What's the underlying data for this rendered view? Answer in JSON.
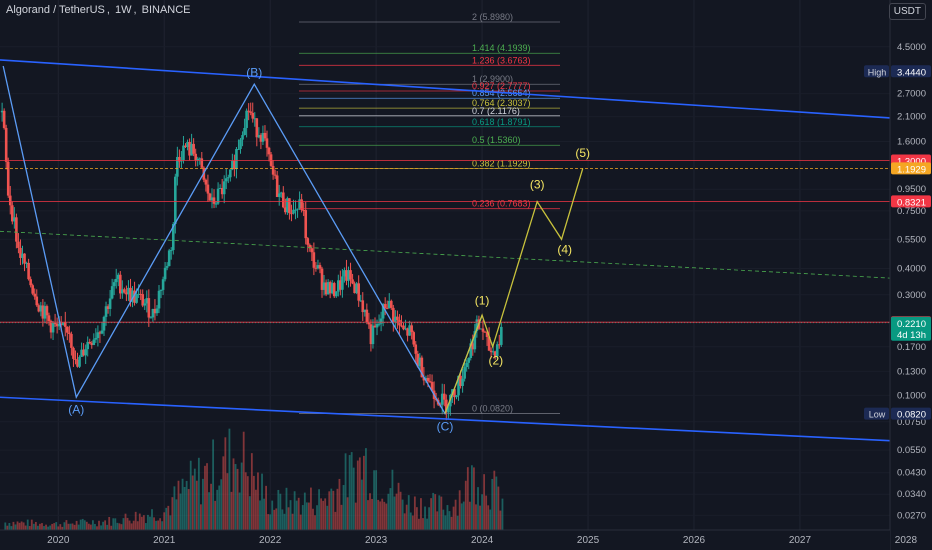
{
  "header": {
    "symbol": "Algorand / TetherUS",
    "interval": "1W",
    "exchange": "BINANCE",
    "currency": "USDT"
  },
  "colors": {
    "background": "#131722",
    "up": "#26a69a",
    "down": "#ef5350",
    "channel": "#2962ff",
    "zigzag": "#5b9cf6",
    "elliott": "#c8c23c",
    "wave_label": "#f5e663",
    "abc_label": "#5b9cf6",
    "midline": "#4caf50",
    "hline_red": "#ef5350",
    "hline_orange": "#f5a623"
  },
  "chart_data": {
    "type": "candlestick",
    "title": "Algorand / TetherUS, 1W, BINANCE",
    "y_scale": "log",
    "ylim": [
      0.023,
      7.5
    ],
    "xlim": [
      2019.45,
      2027.85
    ],
    "x_ticks": [
      "2020",
      "2021",
      "2022",
      "2023",
      "2024",
      "2025",
      "2026",
      "2027",
      "2028"
    ],
    "y_ticks": [
      "4.5000",
      "3.4440",
      "2.7000",
      "2.1000",
      "1.6000",
      "1.3000",
      "1.1929",
      "0.9500",
      "0.8321",
      "0.7500",
      "0.5500",
      "0.4000",
      "0.3000",
      "0.2224",
      "0.2210",
      "0.1700",
      "0.1300",
      "0.1000",
      "0.0820",
      "0.0750",
      "0.0550",
      "0.0430",
      "0.0340",
      "0.0270"
    ],
    "price_badges": [
      {
        "label": "High",
        "value": "3.4440",
        "color": "#1c2a54"
      },
      {
        "value": "1.3000",
        "color": "#f23645"
      },
      {
        "value": "1.1929",
        "color": "#f5a623"
      },
      {
        "value": "0.8321",
        "color": "#f23645"
      },
      {
        "value": "0.2224",
        "color": "#f23645"
      },
      {
        "value": "0.2210",
        "sub": "4d 13h",
        "color": "#089981"
      },
      {
        "label": "Low",
        "value": "0.0820",
        "color": "#1c2a54"
      }
    ],
    "ohlc_keypoints": [
      [
        2019.47,
        2.2
      ],
      [
        2019.52,
        0.95
      ],
      [
        2019.62,
        0.5
      ],
      [
        2019.72,
        0.36
      ],
      [
        2019.82,
        0.27
      ],
      [
        2019.92,
        0.22
      ],
      [
        2020.02,
        0.2
      ],
      [
        2020.1,
        0.21
      ],
      [
        2020.17,
        0.13
      ],
      [
        2020.25,
        0.17
      ],
      [
        2020.4,
        0.21
      ],
      [
        2020.55,
        0.35
      ],
      [
        2020.68,
        0.3
      ],
      [
        2020.8,
        0.28
      ],
      [
        2020.9,
        0.24
      ],
      [
        2021.0,
        0.37
      ],
      [
        2021.08,
        0.55
      ],
      [
        2021.12,
        1.35
      ],
      [
        2021.2,
        1.5
      ],
      [
        2021.3,
        1.4
      ],
      [
        2021.38,
        1.0
      ],
      [
        2021.45,
        0.8
      ],
      [
        2021.55,
        0.95
      ],
      [
        2021.62,
        1.05
      ],
      [
        2021.7,
        1.55
      ],
      [
        2021.75,
        2.0
      ],
      [
        2021.8,
        2.3
      ],
      [
        2021.85,
        1.9
      ],
      [
        2021.92,
        1.75
      ],
      [
        2022.0,
        1.2
      ],
      [
        2022.08,
        0.9
      ],
      [
        2022.15,
        0.8
      ],
      [
        2022.22,
        0.75
      ],
      [
        2022.3,
        0.8
      ],
      [
        2022.35,
        0.5
      ],
      [
        2022.42,
        0.42
      ],
      [
        2022.5,
        0.34
      ],
      [
        2022.58,
        0.31
      ],
      [
        2022.65,
        0.33
      ],
      [
        2022.72,
        0.37
      ],
      [
        2022.8,
        0.33
      ],
      [
        2022.88,
        0.26
      ],
      [
        2022.95,
        0.19
      ],
      [
        2023.02,
        0.21
      ],
      [
        2023.1,
        0.28
      ],
      [
        2023.18,
        0.23
      ],
      [
        2023.25,
        0.2
      ],
      [
        2023.32,
        0.2
      ],
      [
        2023.38,
        0.15
      ],
      [
        2023.45,
        0.13
      ],
      [
        2023.52,
        0.11
      ],
      [
        2023.58,
        0.1
      ],
      [
        2023.65,
        0.09
      ],
      [
        2023.72,
        0.1
      ],
      [
        2023.8,
        0.12
      ],
      [
        2023.88,
        0.16
      ],
      [
        2023.95,
        0.21
      ],
      [
        2024.0,
        0.21
      ],
      [
        2024.05,
        0.17
      ],
      [
        2024.1,
        0.16
      ],
      [
        2024.16,
        0.18
      ],
      [
        2024.2,
        0.221
      ]
    ],
    "volume_keypoints": [
      [
        2019.5,
        0.1
      ],
      [
        2020.0,
        0.08
      ],
      [
        2020.5,
        0.12
      ],
      [
        2021.0,
        0.25
      ],
      [
        2021.2,
        0.55
      ],
      [
        2021.7,
        1.0
      ],
      [
        2022.0,
        0.35
      ],
      [
        2022.5,
        0.4
      ],
      [
        2022.9,
        0.9
      ],
      [
        2023.3,
        0.35
      ],
      [
        2023.7,
        0.3
      ],
      [
        2023.95,
        0.75
      ],
      [
        2024.2,
        0.4
      ]
    ],
    "fib_levels": [
      {
        "label": "2 (5.8980)",
        "value": 5.898,
        "color": "#787b86"
      },
      {
        "label": "1.414 (4.1939)",
        "value": 4.1939,
        "color": "#4caf50"
      },
      {
        "label": "1.236 (3.6763)",
        "value": 3.6763,
        "color": "#f23645"
      },
      {
        "label": "1 (2.9900)",
        "value": 2.99,
        "color": "#787b86"
      },
      {
        "label": "0.927 (2.7777)",
        "value": 2.7777,
        "color": "#f23645"
      },
      {
        "label": "0.854 (2.5654)",
        "value": 2.5654,
        "color": "#5b9cf6"
      },
      {
        "label": "0.764 (2.3037)",
        "value": 2.3037,
        "color": "#c8c23c"
      },
      {
        "label": "0.7 (2.1176)",
        "value": 2.1176,
        "color": "#d1d4dc"
      },
      {
        "label": "0.618 (1.8791)",
        "value": 1.8791,
        "color": "#089981"
      },
      {
        "label": "0.5 (1.5360)",
        "value": 1.536,
        "color": "#4caf50"
      },
      {
        "label": "0.382 (1.1929)",
        "value": 1.1929,
        "color": "#c8c23c"
      },
      {
        "label": "0.236 (0.7683)",
        "value": 0.7683,
        "color": "#f23645"
      },
      {
        "label": "0 (0.0820)",
        "value": 0.082,
        "color": "#787b86"
      }
    ],
    "horizontal_lines": [
      {
        "value": 1.3,
        "color": "#f23645"
      },
      {
        "value": 1.1929,
        "color": "#f5a623"
      },
      {
        "value": 0.8321,
        "color": "#f23645"
      },
      {
        "value": 0.2224,
        "color": "#f23645"
      }
    ],
    "channel_upper": [
      [
        2019.45,
        3.9
      ],
      [
        2027.85,
        2.07
      ]
    ],
    "channel_lower": [
      [
        2019.45,
        0.098
      ],
      [
        2027.85,
        0.061
      ]
    ],
    "midline": [
      [
        2019.45,
        0.6
      ],
      [
        2027.85,
        0.36
      ]
    ],
    "zigzag": [
      [
        2019.48,
        3.65
      ],
      [
        2020.17,
        0.098
      ],
      [
        2021.85,
        2.99
      ],
      [
        2023.65,
        0.082
      ],
      [
        2024.0,
        0.24
      ]
    ],
    "elliott_projection": [
      [
        2023.65,
        0.082
      ],
      [
        2024.0,
        0.24
      ],
      [
        2024.1,
        0.17
      ],
      [
        2024.52,
        0.83
      ],
      [
        2024.75,
        0.55
      ],
      [
        2024.95,
        1.19
      ]
    ],
    "wave_labels": [
      {
        "text": "(B)",
        "x": 2021.85,
        "y": 3.25,
        "kind": "abc"
      },
      {
        "text": "(A)",
        "x": 2020.17,
        "y": 0.082,
        "kind": "abc"
      },
      {
        "text": "(C)",
        "x": 2023.65,
        "y": 0.068,
        "kind": "abc"
      },
      {
        "text": "(1)",
        "x": 2024.0,
        "y": 0.27,
        "kind": "wave"
      },
      {
        "text": "(2)",
        "x": 2024.13,
        "y": 0.14,
        "kind": "wave"
      },
      {
        "text": "(3)",
        "x": 2024.52,
        "y": 0.96,
        "kind": "wave"
      },
      {
        "text": "(4)",
        "x": 2024.78,
        "y": 0.47,
        "kind": "wave"
      },
      {
        "text": "(5)",
        "x": 2024.95,
        "y": 1.35,
        "kind": "wave"
      }
    ]
  }
}
